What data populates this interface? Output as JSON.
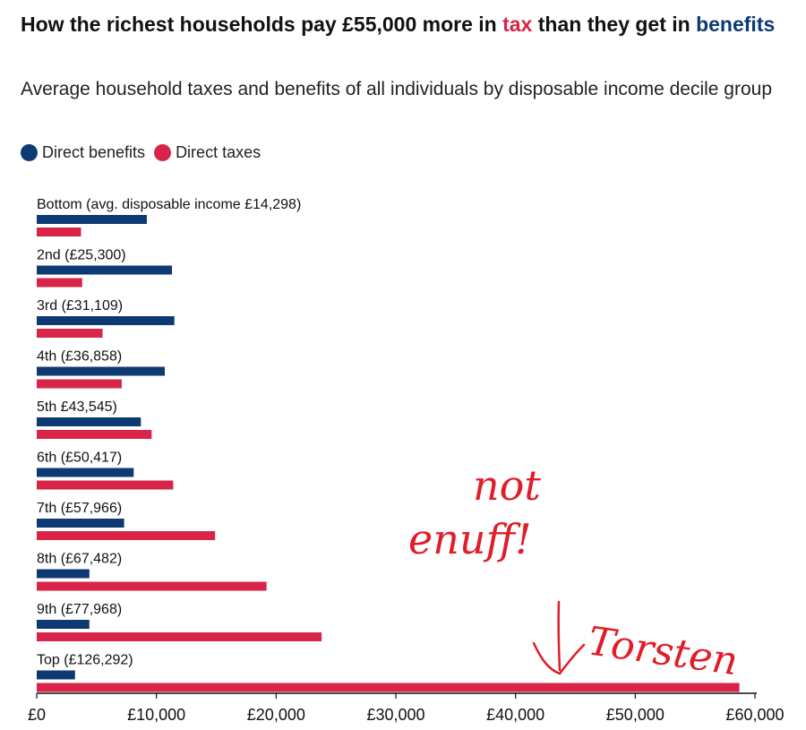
{
  "title": {
    "part1": "How the richest households pay £55,000 more in ",
    "tax_word": "tax",
    "part2": " than they get in ",
    "benefits_word": "benefits"
  },
  "subtitle": "Average household taxes and benefits of all individuals by disposable income decile group",
  "legend": {
    "benefits_label": "Direct benefits",
    "taxes_label": "Direct taxes"
  },
  "colors": {
    "benefits": "#0d3a72",
    "taxes": "#d72448",
    "annotation": "#e11d2a"
  },
  "annotation": {
    "line1": "not",
    "line2": "enuff!",
    "signature": "Torsten"
  },
  "chart_data": {
    "type": "bar",
    "orientation": "horizontal",
    "categories": [
      "Bottom (avg. disposable income £14,298)",
      "2nd (£25,300)",
      "3rd (£31,109)",
      "4th (£36,858)",
      "5th £43,545)",
      "6th (£50,417)",
      "7th (£57,966)",
      "8th (£67,482)",
      "9th (£77,968)",
      "Top (£126,292)"
    ],
    "series": [
      {
        "name": "Direct benefits",
        "values": [
          9200,
          11300,
          11500,
          10700,
          8700,
          8100,
          7300,
          4400,
          4400,
          3200
        ]
      },
      {
        "name": "Direct taxes",
        "values": [
          3700,
          3800,
          5500,
          7100,
          9600,
          11400,
          14900,
          19200,
          23800,
          58700
        ]
      }
    ],
    "xlim": [
      0,
      60000
    ],
    "xticks": [
      "£0",
      "£10,000",
      "£20,000",
      "£30,000",
      "£40,000",
      "£50,000",
      "£60,000"
    ],
    "legend_position": "top-left",
    "grid": false
  }
}
